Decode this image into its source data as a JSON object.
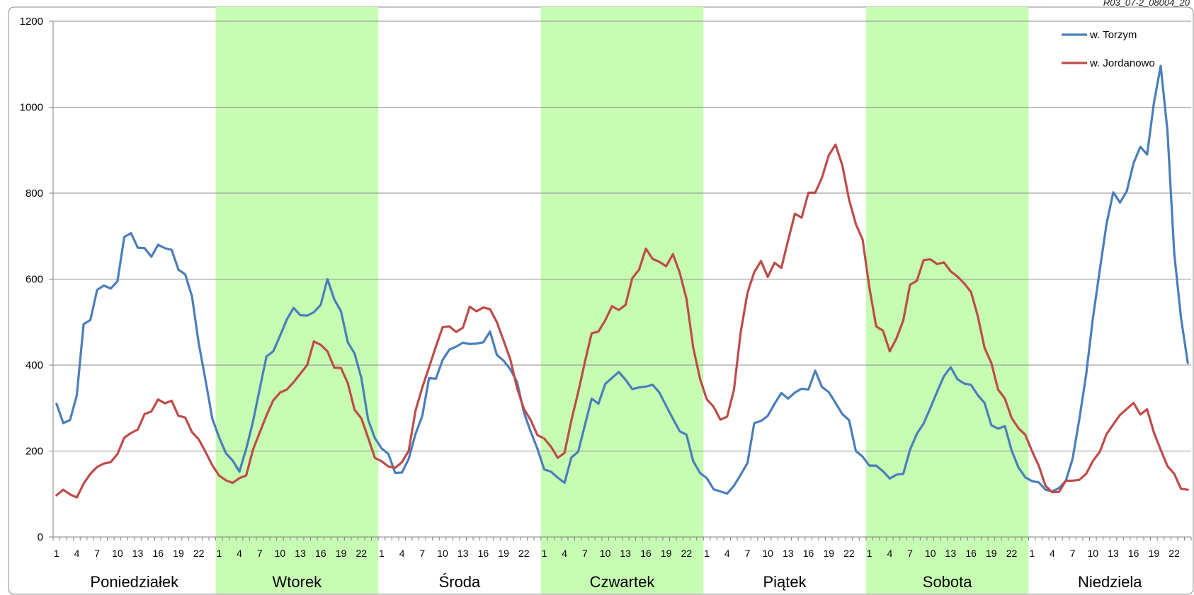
{
  "corner_label": "R03_07-2_08004_20",
  "chart_data": {
    "type": "line",
    "title": "",
    "xlabel": "",
    "ylabel": "",
    "ylim": [
      0,
      1200
    ],
    "yticks": [
      0,
      200,
      400,
      600,
      800,
      1000,
      1200
    ],
    "grid": true,
    "legend_position": "top-right",
    "hour_tick_labels": [
      "1",
      "4",
      "7",
      "10",
      "13",
      "16",
      "19",
      "22"
    ],
    "days": [
      {
        "label": "Poniedziałek",
        "shaded": false
      },
      {
        "label": "Wtorek",
        "shaded": true
      },
      {
        "label": "Środa",
        "shaded": false
      },
      {
        "label": "Czwartek",
        "shaded": true
      },
      {
        "label": "Piątek",
        "shaded": false
      },
      {
        "label": "Sobota",
        "shaded": true
      },
      {
        "label": "Niedziela",
        "shaded": false
      }
    ],
    "colors": {
      "shade": "#c6fdb3",
      "grid": "#8c8c8c",
      "axis": "#808080"
    },
    "series": [
      {
        "name": "w. Torzym",
        "color": "#4a7ebb",
        "values": [
          310,
          265,
          272,
          330,
          495,
          505,
          575,
          585,
          578,
          595,
          698,
          707,
          673,
          672,
          652,
          680,
          672,
          668,
          622,
          611,
          560,
          450,
          365,
          275,
          232,
          195,
          178,
          152,
          205,
          268,
          345,
          420,
          432,
          468,
          506,
          533,
          516,
          515,
          523,
          540,
          600,
          553,
          525,
          453,
          427,
          370,
          273,
          230,
          206,
          193,
          149,
          150,
          182,
          240,
          282,
          370,
          368,
          412,
          436,
          443,
          452,
          449,
          450,
          453,
          478,
          424,
          410,
          390,
          360,
          290,
          245,
          205,
          157,
          152,
          138,
          126,
          185,
          198,
          260,
          322,
          310,
          356,
          370,
          384,
          366,
          344,
          348,
          350,
          354,
          336,
          305,
          275,
          246,
          238,
          176,
          149,
          137,
          111,
          106,
          101,
          119,
          145,
          172,
          265,
          270,
          282,
          310,
          335,
          322,
          336,
          345,
          343,
          387,
          349,
          337,
          312,
          286,
          272,
          200,
          187,
          166,
          166,
          153,
          136,
          145,
          147,
          203,
          240,
          264,
          300,
          338,
          374,
          395,
          367,
          357,
          354,
          330,
          312,
          260,
          252,
          258,
          201,
          162,
          139,
          130,
          127,
          110,
          106,
          114,
          131,
          182,
          275,
          378,
          510,
          620,
          728,
          802,
          778,
          805,
          870,
          908,
          890,
          1010,
          1096,
          945,
          660,
          510,
          405
        ]
      },
      {
        "name": "w. Jordanowo",
        "color": "#be4b48",
        "values": [
          97,
          110,
          99,
          92,
          124,
          147,
          163,
          171,
          174,
          193,
          231,
          242,
          250,
          286,
          292,
          320,
          311,
          317,
          282,
          278,
          244,
          227,
          198,
          167,
          143,
          132,
          126,
          137,
          143,
          203,
          243,
          283,
          318,
          336,
          343,
          360,
          380,
          400,
          455,
          447,
          432,
          394,
          393,
          358,
          296,
          276,
          231,
          184,
          176,
          164,
          161,
          174,
          201,
          294,
          348,
          395,
          443,
          488,
          490,
          477,
          487,
          536,
          525,
          534,
          530,
          500,
          457,
          413,
          346,
          298,
          272,
          237,
          229,
          210,
          184,
          196,
          271,
          336,
          407,
          474,
          478,
          504,
          537,
          528,
          540,
          602,
          622,
          671,
          647,
          640,
          630,
          658,
          615,
          554,
          440,
          368,
          320,
          303,
          273,
          280,
          342,
          476,
          568,
          616,
          642,
          605,
          638,
          626,
          690,
          752,
          743,
          801,
          801,
          836,
          888,
          913,
          865,
          785,
          728,
          692,
          580,
          490,
          480,
          432,
          462,
          504,
          587,
          596,
          644,
          646,
          635,
          639,
          618,
          606,
          590,
          570,
          514,
          440,
          405,
          343,
          322,
          277,
          253,
          238,
          200,
          166,
          119,
          104,
          105,
          131,
          131,
          133,
          147,
          177,
          198,
          239,
          262,
          284,
          298,
          312,
          285,
          297,
          243,
          203,
          165,
          147,
          112,
          110
        ]
      }
    ]
  }
}
